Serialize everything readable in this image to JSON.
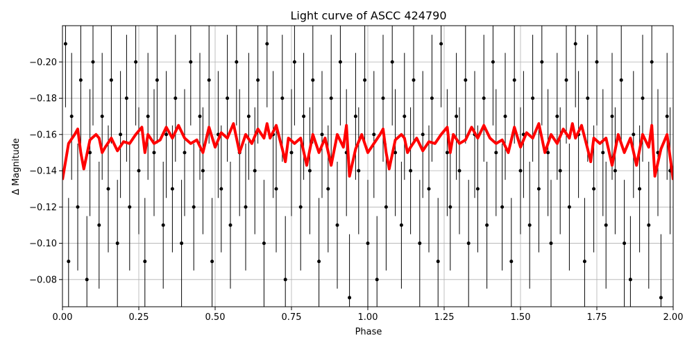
{
  "chart_data": {
    "type": "scatter",
    "title": "Light curve of ASCC 424790",
    "xlabel": "Phase",
    "ylabel": "Δ Magnitude",
    "xlim": [
      0.0,
      2.0
    ],
    "ylim": [
      -0.065,
      -0.22
    ],
    "y_inverted": true,
    "grid": true,
    "x_ticks": [
      {
        "value": 0.0,
        "label": "0.00"
      },
      {
        "value": 0.25,
        "label": "0.25"
      },
      {
        "value": 0.5,
        "label": "0.50"
      },
      {
        "value": 0.75,
        "label": "0.75"
      },
      {
        "value": 1.0,
        "label": "1.00"
      },
      {
        "value": 1.25,
        "label": "1.25"
      },
      {
        "value": 1.5,
        "label": "1.50"
      },
      {
        "value": 1.75,
        "label": "1.75"
      },
      {
        "value": 2.0,
        "label": "2.00"
      }
    ],
    "y_ticks": [
      {
        "value": -0.08,
        "label": "−0.08"
      },
      {
        "value": -0.1,
        "label": "−0.10"
      },
      {
        "value": -0.12,
        "label": "−0.12"
      },
      {
        "value": -0.14,
        "label": "−0.14"
      },
      {
        "value": -0.16,
        "label": "−0.16"
      },
      {
        "value": -0.18,
        "label": "−0.18"
      },
      {
        "value": -0.2,
        "label": "−0.20"
      }
    ],
    "series": [
      {
        "kind": "points_with_errorbars",
        "color": "#000000",
        "x": [
          0.01,
          0.02,
          0.03,
          0.05,
          0.06,
          0.08,
          0.09,
          0.1,
          0.12,
          0.13,
          0.15,
          0.16,
          0.18,
          0.19,
          0.21,
          0.22,
          0.24,
          0.25,
          0.27,
          0.28,
          0.3,
          0.31,
          0.33,
          0.34,
          0.36,
          0.37,
          0.39,
          0.4,
          0.42,
          0.43,
          0.45,
          0.46,
          0.48,
          0.49,
          0.51,
          0.52,
          0.54,
          0.55,
          0.57,
          0.58,
          0.6,
          0.61,
          0.63,
          0.64,
          0.66,
          0.67,
          0.69,
          0.7,
          0.72,
          0.73,
          0.75,
          0.76,
          0.78,
          0.79,
          0.81,
          0.82,
          0.84,
          0.85,
          0.87,
          0.88,
          0.9,
          0.91,
          0.93,
          0.94,
          0.96,
          0.97,
          0.99,
          1.0,
          1.02,
          1.03,
          1.05,
          1.06,
          1.08,
          1.09,
          1.11,
          1.12,
          1.14,
          1.15,
          1.17,
          1.18,
          1.2,
          1.21,
          1.23,
          1.24,
          1.26,
          1.27,
          1.29,
          1.3,
          1.32,
          1.33,
          1.35,
          1.36,
          1.38,
          1.39,
          1.41,
          1.42,
          1.44,
          1.45,
          1.47,
          1.48,
          1.5,
          1.51,
          1.53,
          1.54,
          1.56,
          1.57,
          1.59,
          1.6,
          1.62,
          1.63,
          1.65,
          1.66,
          1.68,
          1.69,
          1.71,
          1.72,
          1.74,
          1.75,
          1.77,
          1.78,
          1.8,
          1.81,
          1.83,
          1.84,
          1.86,
          1.87,
          1.89,
          1.9,
          1.92,
          1.93,
          1.95,
          1.96,
          1.98,
          1.99
        ],
        "y": [
          -0.21,
          -0.09,
          -0.17,
          -0.12,
          -0.19,
          -0.08,
          -0.15,
          -0.2,
          -0.11,
          -0.17,
          -0.13,
          -0.19,
          -0.1,
          -0.16,
          -0.18,
          -0.12,
          -0.2,
          -0.14,
          -0.09,
          -0.17,
          -0.15,
          -0.19,
          -0.11,
          -0.16,
          -0.13,
          -0.18,
          -0.1,
          -0.15,
          -0.2,
          -0.12,
          -0.17,
          -0.14,
          -0.19,
          -0.09,
          -0.16,
          -0.13,
          -0.18,
          -0.11,
          -0.2,
          -0.15,
          -0.12,
          -0.17,
          -0.14,
          -0.19,
          -0.1,
          -0.21,
          -0.16,
          -0.13,
          -0.18,
          -0.08,
          -0.15,
          -0.2,
          -0.12,
          -0.17,
          -0.14,
          -0.19,
          -0.09,
          -0.16,
          -0.13,
          -0.18,
          -0.11,
          -0.2,
          -0.15,
          -0.07,
          -0.17,
          -0.14,
          -0.19,
          -0.1,
          -0.16,
          -0.08,
          -0.18,
          -0.12,
          -0.2,
          -0.15,
          -0.11,
          -0.17,
          -0.14,
          -0.19,
          -0.1,
          -0.16,
          -0.13,
          -0.18,
          -0.09,
          -0.21,
          -0.15,
          -0.12,
          -0.17,
          -0.14,
          -0.19,
          -0.1,
          -0.16,
          -0.13,
          -0.18,
          -0.11,
          -0.2,
          -0.15,
          -0.12,
          -0.17,
          -0.09,
          -0.19,
          -0.14,
          -0.16,
          -0.11,
          -0.18,
          -0.13,
          -0.2,
          -0.15,
          -0.1,
          -0.17,
          -0.14,
          -0.19,
          -0.12,
          -0.21,
          -0.16,
          -0.09,
          -0.18,
          -0.13,
          -0.2,
          -0.15,
          -0.11,
          -0.17,
          -0.14,
          -0.19,
          -0.1,
          -0.08,
          -0.16,
          -0.13,
          -0.18,
          -0.11,
          -0.2,
          -0.15,
          -0.07,
          -0.17,
          -0.14
        ],
        "yerr": 0.035
      },
      {
        "kind": "model_line",
        "color": "#ff0000",
        "x": [
          0.0,
          0.02,
          0.04,
          0.05,
          0.06,
          0.07,
          0.09,
          0.11,
          0.12,
          0.13,
          0.14,
          0.16,
          0.18,
          0.2,
          0.22,
          0.24,
          0.26,
          0.27,
          0.28,
          0.3,
          0.32,
          0.34,
          0.36,
          0.38,
          0.4,
          0.42,
          0.44,
          0.46,
          0.48,
          0.5,
          0.52,
          0.54,
          0.56,
          0.58,
          0.6,
          0.62,
          0.64,
          0.66,
          0.67,
          0.68,
          0.7,
          0.72,
          0.73,
          0.74,
          0.76,
          0.78,
          0.8,
          0.82,
          0.84,
          0.86,
          0.88,
          0.9,
          0.92,
          0.93,
          0.94,
          0.96,
          0.98,
          1.0,
          1.02,
          1.04,
          1.05,
          1.06,
          1.07,
          1.09,
          1.11,
          1.12,
          1.13,
          1.14,
          1.16,
          1.18,
          1.2,
          1.22,
          1.24,
          1.26,
          1.27,
          1.28,
          1.3,
          1.32,
          1.34,
          1.36,
          1.38,
          1.4,
          1.42,
          1.44,
          1.46,
          1.48,
          1.5,
          1.52,
          1.54,
          1.56,
          1.58,
          1.6,
          1.62,
          1.64,
          1.66,
          1.67,
          1.68,
          1.7,
          1.72,
          1.73,
          1.74,
          1.76,
          1.78,
          1.8,
          1.82,
          1.84,
          1.86,
          1.88,
          1.9,
          1.92,
          1.93,
          1.94,
          1.96,
          1.98,
          2.0
        ],
        "y": [
          -0.135,
          -0.155,
          -0.16,
          -0.163,
          -0.15,
          -0.141,
          -0.157,
          -0.16,
          -0.158,
          -0.15,
          -0.153,
          -0.158,
          -0.151,
          -0.156,
          -0.155,
          -0.16,
          -0.164,
          -0.15,
          -0.16,
          -0.155,
          -0.157,
          -0.164,
          -0.158,
          -0.165,
          -0.158,
          -0.155,
          -0.157,
          -0.15,
          -0.164,
          -0.153,
          -0.161,
          -0.158,
          -0.166,
          -0.15,
          -0.16,
          -0.155,
          -0.163,
          -0.158,
          -0.166,
          -0.158,
          -0.165,
          -0.152,
          -0.145,
          -0.158,
          -0.155,
          -0.158,
          -0.143,
          -0.16,
          -0.15,
          -0.158,
          -0.143,
          -0.16,
          -0.153,
          -0.165,
          -0.137,
          -0.152,
          -0.16,
          -0.15,
          -0.155,
          -0.16,
          -0.163,
          -0.15,
          -0.141,
          -0.157,
          -0.16,
          -0.158,
          -0.15,
          -0.153,
          -0.158,
          -0.151,
          -0.156,
          -0.155,
          -0.16,
          -0.164,
          -0.15,
          -0.16,
          -0.155,
          -0.157,
          -0.164,
          -0.158,
          -0.165,
          -0.158,
          -0.155,
          -0.157,
          -0.15,
          -0.164,
          -0.153,
          -0.161,
          -0.158,
          -0.166,
          -0.15,
          -0.16,
          -0.155,
          -0.163,
          -0.158,
          -0.166,
          -0.158,
          -0.165,
          -0.152,
          -0.145,
          -0.158,
          -0.155,
          -0.158,
          -0.143,
          -0.16,
          -0.15,
          -0.158,
          -0.143,
          -0.16,
          -0.153,
          -0.165,
          -0.137,
          -0.152,
          -0.16,
          -0.135
        ]
      }
    ]
  }
}
